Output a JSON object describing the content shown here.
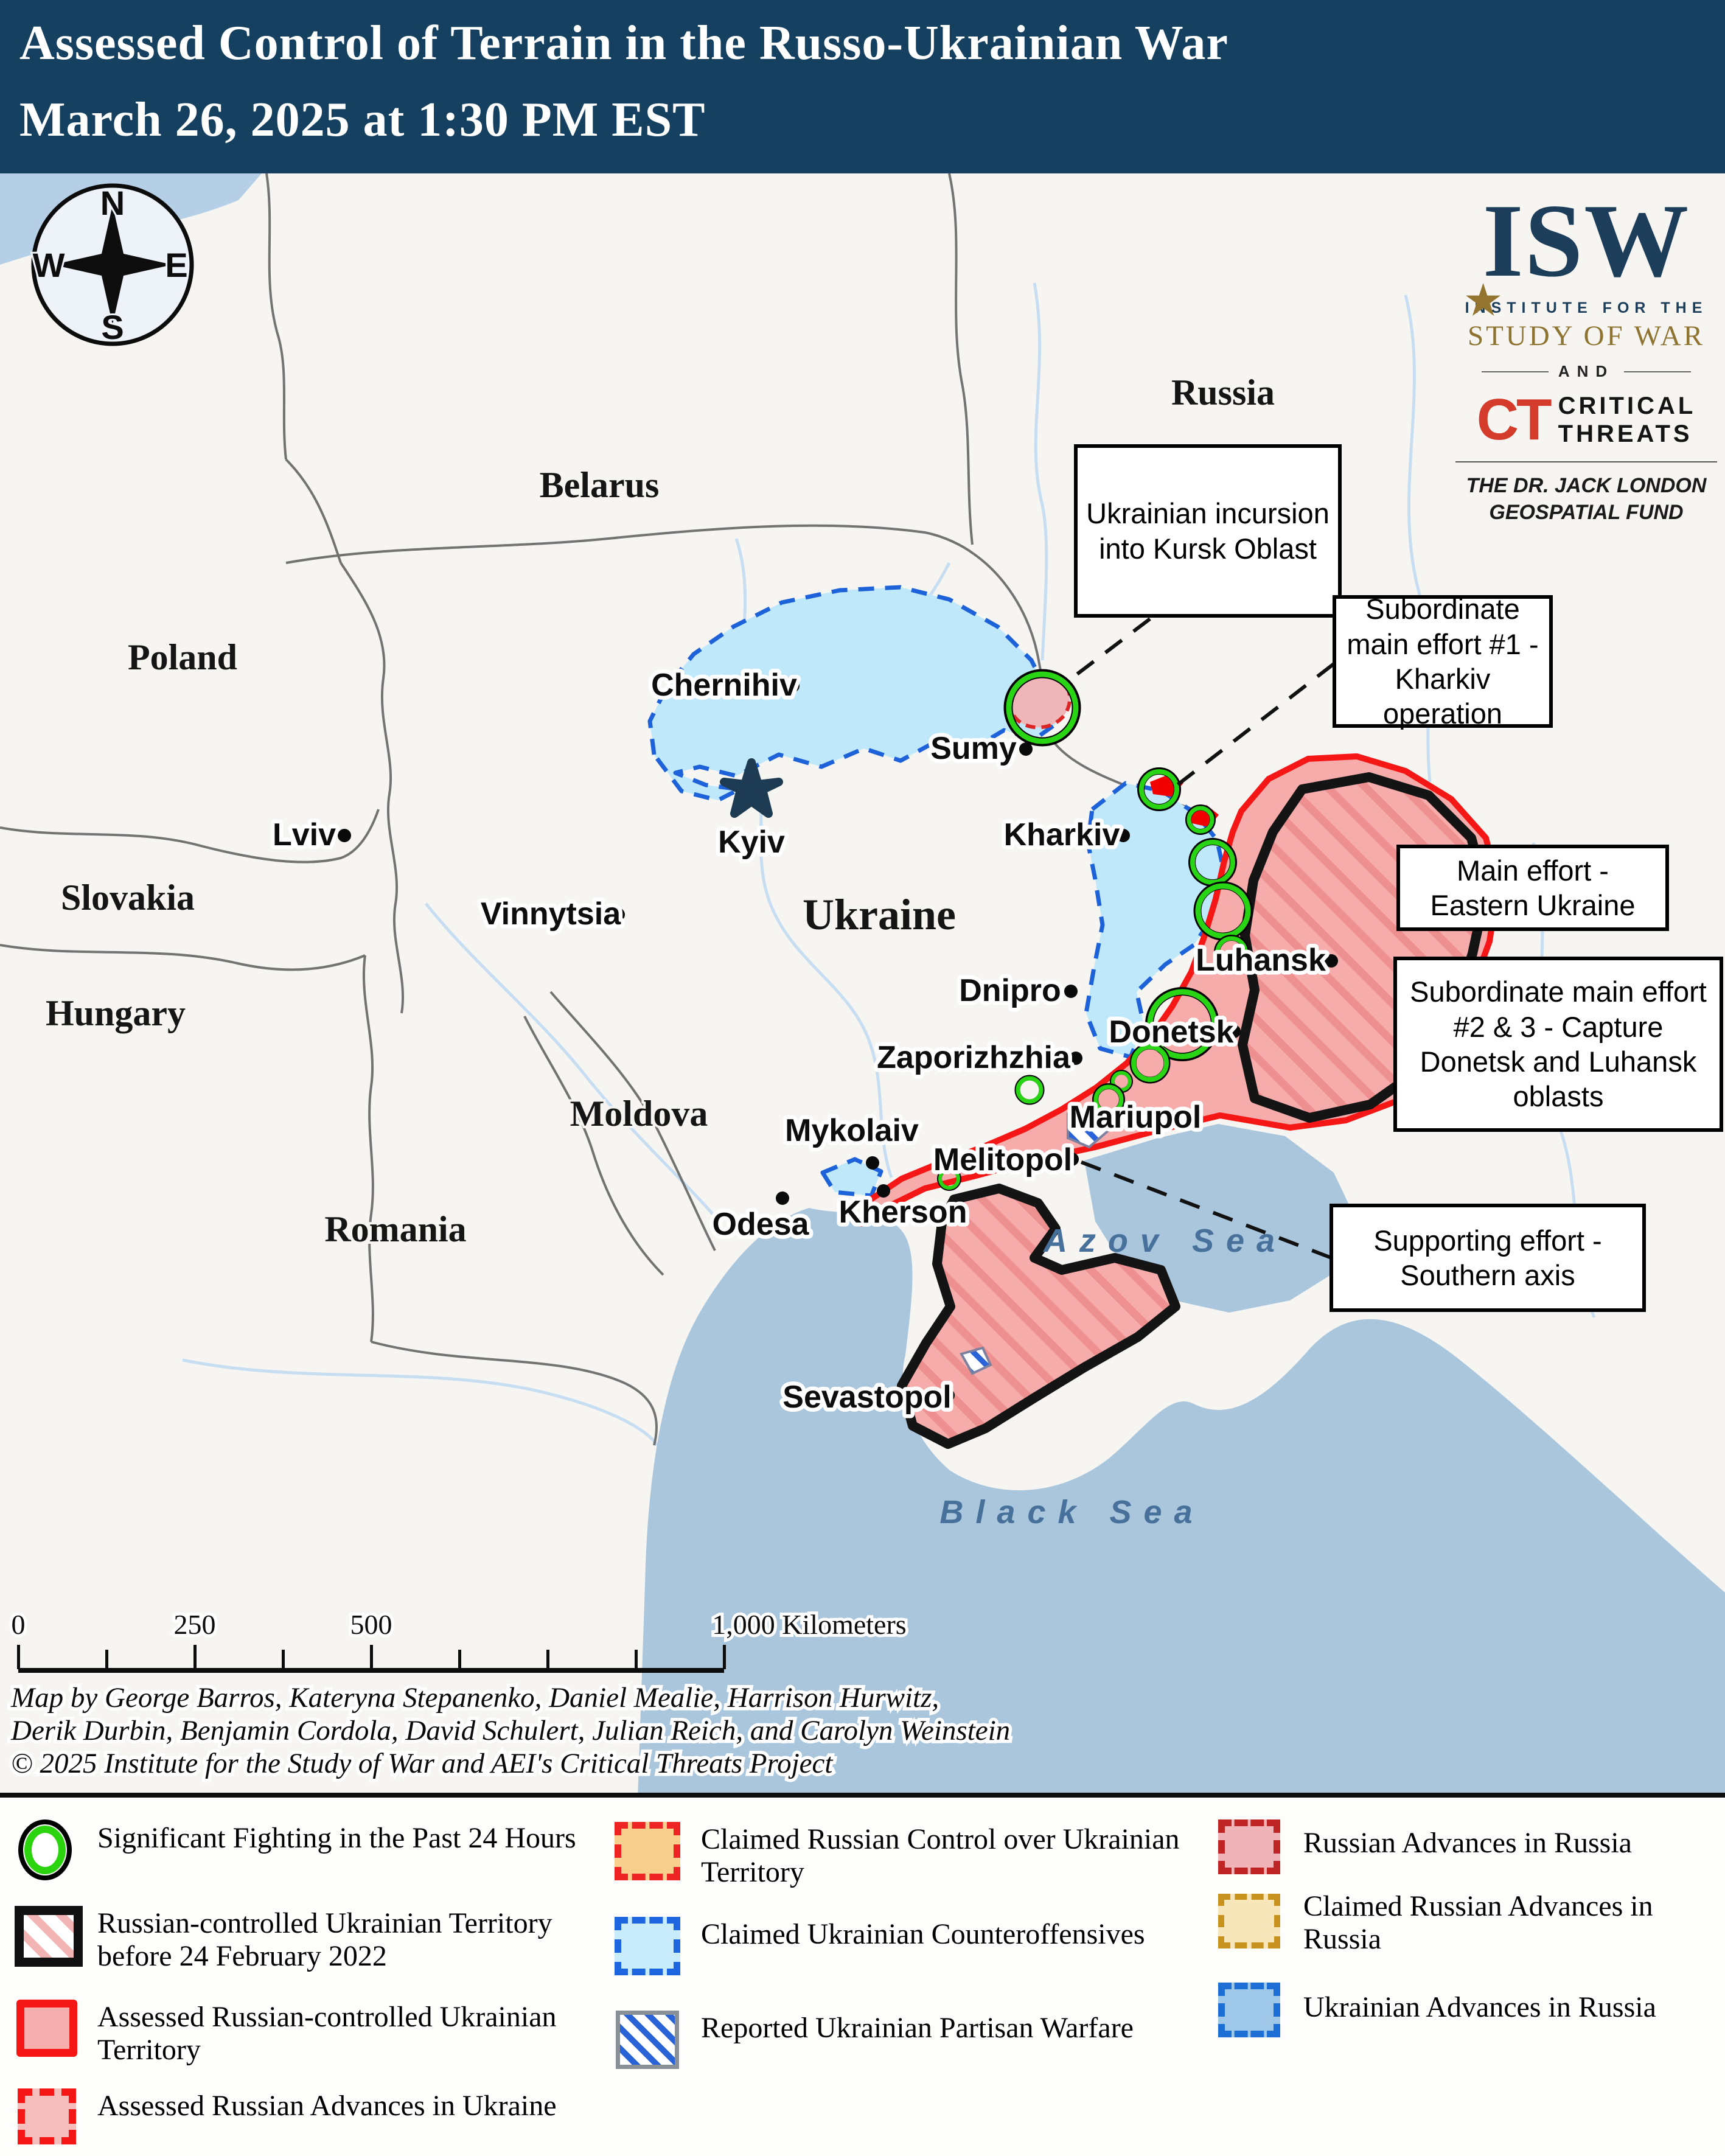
{
  "header": {
    "title_line1": "Assessed Control of Terrain in the Russo-Ukrainian War",
    "title_line2": "March 26, 2025 at 1:30 PM EST"
  },
  "logo": {
    "isw": "ISW",
    "star": "★",
    "institute": "INSTITUTE FOR THE",
    "study_of_war": "STUDY OF WAR",
    "and": "AND",
    "ct": "CT",
    "critical": "CRITICAL",
    "threats": "THREATS",
    "fund_line1": "THE DR. JACK LONDON",
    "fund_line2": "GEOSPATIAL FUND"
  },
  "compass": {
    "north": "N",
    "east": "E",
    "south": "S",
    "west": "W"
  },
  "map": {
    "countries": [
      {
        "name": "Poland"
      },
      {
        "name": "Belarus"
      },
      {
        "name": "Russia"
      },
      {
        "name": "Slovakia"
      },
      {
        "name": "Hungary"
      },
      {
        "name": "Romania"
      },
      {
        "name": "Moldova"
      },
      {
        "name": "Ukraine"
      }
    ],
    "capital": {
      "name": "Kyiv"
    },
    "cities": [
      {
        "name": "Chernihiv"
      },
      {
        "name": "Sumy"
      },
      {
        "name": "Kharkiv"
      },
      {
        "name": "Lviv"
      },
      {
        "name": "Vinnytsia"
      },
      {
        "name": "Dnipro"
      },
      {
        "name": "Zaporizhzhia"
      },
      {
        "name": "Donetsk"
      },
      {
        "name": "Luhansk"
      },
      {
        "name": "Mariupol"
      },
      {
        "name": "Melitopol"
      },
      {
        "name": "Mykolaiv"
      },
      {
        "name": "Kherson"
      },
      {
        "name": "Odesa"
      },
      {
        "name": "Sevastopol"
      }
    ],
    "seas": [
      {
        "name": "Azov Sea"
      },
      {
        "name": "Black Sea"
      }
    ],
    "callouts": [
      {
        "text": "Ukrainian incursion into Kursk Oblast"
      },
      {
        "text": "Subordinate main effort #1 - Kharkiv operation"
      },
      {
        "text": "Main effort - Eastern Ukraine"
      },
      {
        "text": "Subordinate main effort #2 & 3 - Capture Donetsk and Luhansk oblasts"
      },
      {
        "text": "Supporting effort - Southern axis"
      }
    ]
  },
  "scalebar": {
    "tick_labels": [
      "0",
      "250",
      "500"
    ],
    "end_label": "1,000 Kilometers"
  },
  "attribution": {
    "line1": "Map by George Barros, Kateryna Stepanenko, Daniel Mealie, Harrison Hurwitz,",
    "line2": "Derik Durbin, Benjamin Cordola, David Schulert, Julian Reich, and Carolyn Weinstein",
    "line3": "© 2025 Institute for the Study of War and AEI's Critical Threats Project"
  },
  "legend": {
    "column1": [
      {
        "label": "Significant Fighting in the Past 24 Hours",
        "swatch": "green-circle"
      },
      {
        "label": "Russian-controlled Ukrainian Territory before 24 February 2022",
        "swatch": "red-hatch-black-border"
      },
      {
        "label": "Assessed Russian-controlled Ukrainian Territory",
        "swatch": "pink-red-border"
      },
      {
        "label": "Assessed Russian Advances in Ukraine",
        "swatch": "pink-red-dashed"
      }
    ],
    "column2": [
      {
        "label": "Claimed Russian Control over Ukrainian Territory",
        "swatch": "orange-red-dashed"
      },
      {
        "label": "Claimed Ukrainian Counteroffensives",
        "swatch": "lightblue-blue-dashed"
      },
      {
        "label": "Reported Ukrainian Partisan Warfare",
        "swatch": "blue-hatch"
      }
    ],
    "column3": [
      {
        "label": "Russian Advances in Russia",
        "swatch": "pink-darkred-dashed"
      },
      {
        "label": "Claimed Russian Advances in Russia",
        "swatch": "tan-gold-dashed"
      },
      {
        "label": "Ukrainian Advances in Russia",
        "swatch": "blue-blue-dashed"
      }
    ]
  },
  "colors": {
    "header_bg": "#16405f",
    "land": "#f7f5f2",
    "water": "#a9c6dd",
    "russian_controlled_fill": "#f7acac",
    "russian_border": "#f51616",
    "claimed_ukrainian_fill": "#bfe9fa",
    "ukrainian_border": "#1d62d8",
    "green_circle": "#2bd40f",
    "claimed_russian_control_fill": "#f9cf8e",
    "claimed_russian_advances_fill": "#f7e6ba",
    "ukrainian_advances_fill": "#9fc7e8",
    "isw_navy": "#1c3e5a",
    "isw_gold": "#8f7330",
    "ct_red": "#d43b2a"
  }
}
